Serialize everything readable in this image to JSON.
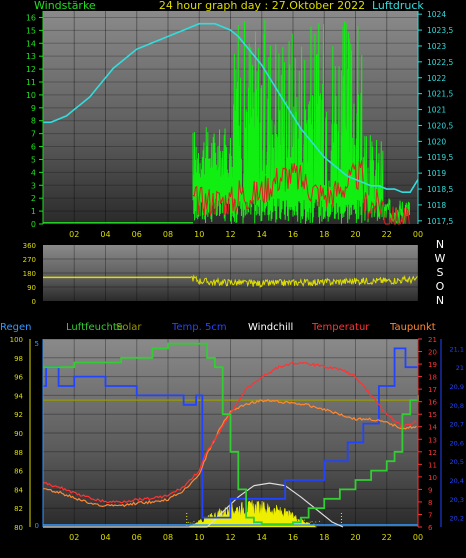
{
  "chart_data": [
    {
      "type": "line",
      "title": "24 hour graph day : 27.Oktober 2022",
      "left_axis_title": "Windstärke",
      "right_axis_title": "Luftdruck",
      "x_ticks": [
        "02",
        "04",
        "06",
        "08",
        "10",
        "12",
        "14",
        "16",
        "18",
        "20",
        "22",
        "00"
      ],
      "y_left_ticks": [
        "0",
        "1",
        "2",
        "3",
        "4",
        "5",
        "6",
        "7",
        "8",
        "9",
        "10",
        "11",
        "12",
        "13",
        "14",
        "15",
        "16"
      ],
      "y_right_ticks": [
        "1017,5",
        "1018",
        "1018,5",
        "1019",
        "1019,5",
        "1020",
        "1020,5",
        "1021",
        "1021,5",
        "1022",
        "1022,5",
        "1023",
        "1023,5",
        "1024"
      ],
      "ylim_left": [
        0,
        16.5
      ],
      "ylim_right": [
        1017.4,
        1024.1
      ],
      "series": [
        {
          "color": "#33dddd",
          "axis": "right",
          "x": [
            0,
            0.5,
            1,
            1.5,
            2,
            2.5,
            3,
            3.5,
            4,
            4.5,
            5,
            5.5,
            6,
            6.5,
            7,
            7.5,
            8,
            8.5,
            9,
            9.5,
            10,
            10.5,
            11,
            11.5,
            12,
            12.5,
            13,
            13.5,
            14,
            14.5,
            15,
            15.5,
            16,
            16.5,
            17,
            17.5,
            18,
            18.5,
            19,
            19.5,
            20,
            20.5,
            21,
            21.5,
            22,
            22.5,
            23,
            23.5,
            24
          ],
          "values": [
            1020.6,
            1020.6,
            1020.7,
            1020.8,
            1021.0,
            1021.2,
            1021.4,
            1021.7,
            1022.0,
            1022.3,
            1022.5,
            1022.7,
            1022.9,
            1023.0,
            1023.1,
            1023.2,
            1023.3,
            1023.4,
            1023.5,
            1023.6,
            1023.7,
            1023.7,
            1023.7,
            1023.6,
            1023.5,
            1023.3,
            1023.0,
            1022.7,
            1022.4,
            1022.0,
            1021.6,
            1021.2,
            1020.8,
            1020.4,
            1020.1,
            1019.8,
            1019.5,
            1019.3,
            1019.1,
            1018.9,
            1018.8,
            1018.7,
            1018.6,
            1018.6,
            1018.5,
            1018.5,
            1018.4,
            1018.4,
            1018.8
          ]
        }
      ]
    },
    {
      "type": "scatter",
      "right_labels": [
        "N",
        "W",
        "S",
        "O",
        "N"
      ],
      "y_ticks": [
        "360",
        "270",
        "180",
        "90",
        "0"
      ],
      "ylim": [
        0,
        360
      ],
      "series": [
        {
          "color": "#dddd00",
          "x": [
            0,
            2,
            4,
            6,
            8,
            9.5,
            10,
            11,
            12,
            13,
            14,
            15,
            16,
            17,
            18,
            19,
            20,
            21,
            22,
            23,
            24
          ],
          "values": [
            152,
            152,
            152,
            152,
            152,
            152,
            130,
            120,
            120,
            115,
            112,
            115,
            118,
            122,
            120,
            125,
            128,
            130,
            130,
            135,
            138
          ]
        }
      ]
    },
    {
      "type": "line",
      "header_labels": [
        {
          "text": "Regen",
          "color": "#3399ff"
        },
        {
          "text": "Luftfeuchte",
          "color": "#33cc33"
        },
        {
          "text": "Solar",
          "color": "#999900"
        },
        {
          "text": "Temp. 5cm",
          "color": "#2244ff"
        },
        {
          "text": "Windchill",
          "color": "#ffffff"
        },
        {
          "text": "Temperatur",
          "color": "#ff3333"
        },
        {
          "text": "Taupunkt",
          "color": "#ff8833"
        }
      ],
      "x_ticks": [
        "02",
        "04",
        "06",
        "08",
        "10",
        "12",
        "14",
        "16",
        "18",
        "20",
        "22",
        "00"
      ],
      "y_left_ticks": [
        "80",
        "82",
        "84",
        "86",
        "88",
        "90",
        "92",
        "94",
        "96",
        "98",
        "100"
      ],
      "y_left2_ticks": [
        "0",
        "5"
      ],
      "y_right_ticks": [
        "6",
        "7",
        "8",
        "9",
        "10",
        "11",
        "12",
        "13",
        "14",
        "15",
        "16",
        "17",
        "18",
        "19",
        "20",
        "21"
      ],
      "y_far_right_ticks": [
        "20,2",
        "20,3",
        "20,4",
        "20,5",
        "20,6",
        "20,7",
        "20,8",
        "20,9",
        "21",
        "21,1"
      ],
      "ylim_humidity": [
        80,
        100
      ],
      "ylim_temp": [
        6,
        21
      ],
      "ylim_temp5": [
        20.15,
        21.15
      ],
      "series": [
        {
          "name": "Luftfeuchte",
          "color": "#33cc33",
          "x": [
            0,
            1,
            2,
            3,
            4,
            5,
            6,
            7,
            8,
            9,
            10,
            10.5,
            11,
            11.5,
            12,
            12.5,
            13,
            13.5,
            14,
            15,
            16,
            16.5,
            17,
            18,
            19,
            20,
            21,
            22,
            22.5,
            23,
            23.5,
            24
          ],
          "values": [
            97,
            97,
            97.5,
            97.5,
            97.5,
            98,
            98,
            99,
            99.5,
            99.5,
            99.5,
            98,
            97,
            92,
            88,
            84,
            81,
            80.5,
            80.3,
            80.3,
            80.5,
            81,
            82,
            83,
            84,
            85,
            86,
            87,
            88,
            92,
            93.5,
            94
          ]
        },
        {
          "name": "Temperatur",
          "color": "#ff3333",
          "x": [
            0,
            1,
            2,
            3,
            4,
            5,
            6,
            7,
            8,
            9,
            10,
            10.5,
            11,
            11.5,
            12,
            12.5,
            13,
            14,
            15,
            16,
            17,
            18,
            19,
            20,
            21,
            22,
            23,
            24
          ],
          "values": [
            9.5,
            9.2,
            8.7,
            8.3,
            8.0,
            8.0,
            8.2,
            8.3,
            8.5,
            9.2,
            10.5,
            12.0,
            13.0,
            14.0,
            15.0,
            16.0,
            17.0,
            18.0,
            18.7,
            19.1,
            19.0,
            18.8,
            18.6,
            18.0,
            16.5,
            15.0,
            14.0,
            14.5
          ]
        },
        {
          "name": "Taupunkt",
          "color": "#ff8833",
          "x": [
            0,
            1,
            2,
            3,
            4,
            5,
            6,
            7,
            8,
            9,
            10,
            10.5,
            11,
            11.5,
            12,
            13,
            14,
            15,
            16,
            17,
            18,
            19,
            20,
            21,
            22,
            23,
            24
          ],
          "values": [
            9.0,
            8.8,
            8.3,
            7.9,
            7.7,
            7.7,
            7.9,
            8.0,
            8.2,
            8.9,
            10.2,
            11.8,
            13.0,
            14.3,
            15.2,
            15.8,
            16.1,
            16.0,
            15.9,
            15.7,
            15.4,
            15.0,
            14.6,
            14.6,
            14.3,
            13.9,
            14.0
          ]
        },
        {
          "name": "Windchill",
          "color": "#ffffff",
          "x": [
            0,
            6,
            10.5,
            11.5,
            12.5,
            13.5,
            14.5,
            15.5,
            16.5,
            17.5,
            18.5,
            19.2
          ],
          "values": [
            6,
            6,
            6,
            7.2,
            8.4,
            9.3,
            9.5,
            9.3,
            8.4,
            7.4,
            6.4,
            6
          ]
        },
        {
          "name": "Temp. 5cm",
          "color": "#2244ff",
          "x": [
            0,
            0.2,
            0.2,
            1,
            1,
            2,
            2,
            4,
            4,
            6,
            6,
            9,
            9,
            9.8,
            9.8,
            10.2,
            10.2,
            12,
            12,
            15.5,
            15.5,
            18,
            18,
            19.5,
            19.5,
            20.5,
            20.5,
            21.5,
            21.5,
            22.5,
            22.5,
            23.2,
            23.2,
            24
          ],
          "values": [
            20.9,
            20.9,
            21.0,
            21.0,
            20.9,
            20.9,
            20.95,
            20.95,
            20.9,
            20.9,
            20.85,
            20.85,
            20.8,
            20.8,
            20.85,
            20.85,
            20.2,
            20.2,
            20.3,
            20.3,
            20.4,
            20.4,
            20.5,
            20.5,
            20.6,
            20.6,
            20.7,
            20.7,
            20.9,
            20.9,
            21.1,
            21.1,
            21.0,
            21.0
          ]
        },
        {
          "name": "Solar",
          "color": "#999900",
          "x": [
            0,
            24
          ],
          "values": [
            93.5,
            93.5
          ]
        },
        {
          "name": "Regen",
          "color": "#3399ff",
          "x": [
            0,
            24
          ],
          "values": [
            0,
            0
          ]
        }
      ]
    }
  ]
}
